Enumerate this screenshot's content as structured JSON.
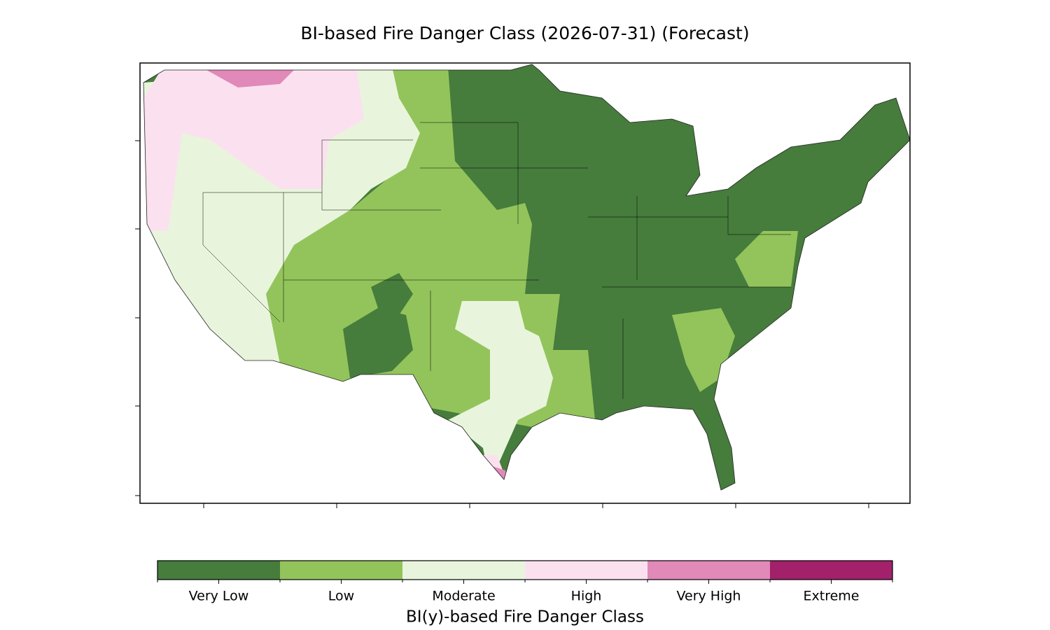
{
  "title": "BI-based Fire Danger Class (2026-07-31) (Forecast)",
  "colorbar": {
    "label": "BI(y)-based Fire Danger Class",
    "classes": [
      {
        "name": "Very Low",
        "color": "#467c3c"
      },
      {
        "name": "Low",
        "color": "#93c45b"
      },
      {
        "name": "Moderate",
        "color": "#e8f5dc"
      },
      {
        "name": "High",
        "color": "#fbe1ef"
      },
      {
        "name": "Very High",
        "color": "#e189b9"
      },
      {
        "name": "Extreme",
        "color": "#a2216a"
      }
    ]
  }
}
